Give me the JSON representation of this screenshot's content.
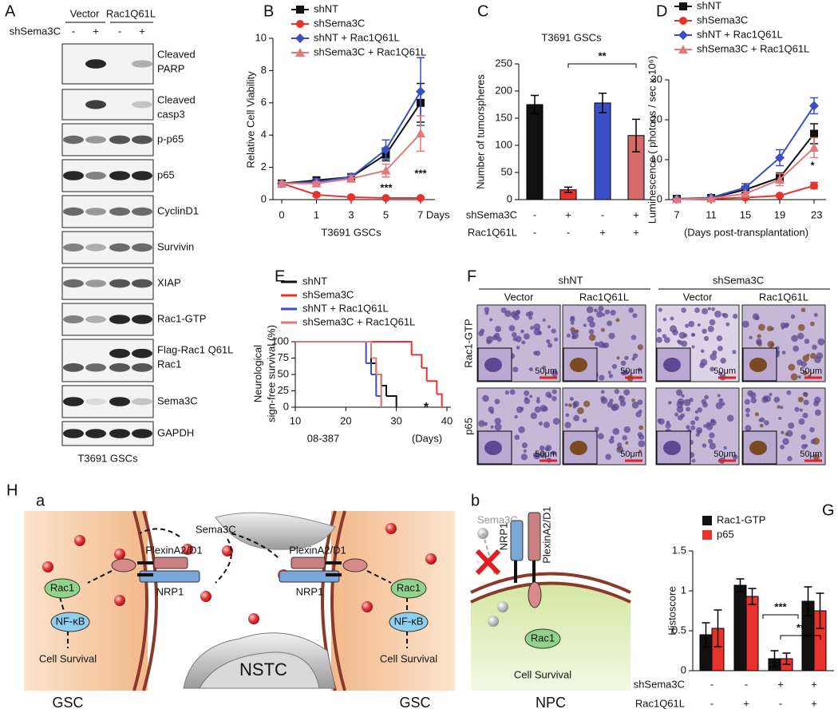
{
  "blot": {
    "panel": "A",
    "groups": [
      "Vector",
      "Rac1Q61L"
    ],
    "row_label": "shSema3C",
    "lanes": [
      "-",
      "+",
      "-",
      "+"
    ],
    "bands": [
      [
        "Cleaved",
        "PARP"
      ],
      [
        "Cleaved",
        "casp3"
      ],
      [
        "p-p65"
      ],
      [
        "p65"
      ],
      [
        "CyclinD1"
      ],
      [
        "Survivin"
      ],
      [
        "XIAP"
      ],
      [
        "Rac1-GTP"
      ],
      [
        "Flag-Rac1 Q61L",
        "Rac1"
      ],
      [
        "Sema3C"
      ],
      [
        "GAPDH"
      ]
    ],
    "caption": "T3691 GSCs"
  },
  "histology": {
    "panel": "F",
    "groups": [
      "shNT",
      "shSema3C"
    ],
    "columns": [
      "Vector",
      "Rac1Q61L",
      "Vector",
      "Rac1Q61L"
    ],
    "rows": [
      "Rac1-GTP",
      "p65"
    ],
    "scale": "50μm"
  },
  "diagram": {
    "panel": "H",
    "a": {
      "label": "a",
      "ligand": "Sema3C",
      "center": "NSTC",
      "left": {
        "receptor": "PlexinA2/D1",
        "coreceptor": "NRP1",
        "effector": "Rac1",
        "factor": "NF-κB",
        "outcome": "Cell Survival",
        "cell": "GSC"
      },
      "right": {
        "receptor": "PlexinA2/D1",
        "coreceptor": "NRP1",
        "effector": "Rac1",
        "factor": "NF-κB",
        "outcome": "Cell Survival",
        "cell": "GSC"
      }
    },
    "b": {
      "label": "b",
      "ligand": "Sema3C",
      "coreceptor": "NRP1",
      "receptor": "PlexinA2/D1",
      "effector": "Rac1",
      "outcome": "Cell Survival",
      "cell": "NPC"
    }
  },
  "chart_data": [
    {
      "type": "line",
      "panel": "B",
      "ylabel": "Relative Cell Viability",
      "xlabel": "T3691 GSCs",
      "categories": [
        "0",
        "1",
        "3",
        "5",
        "7 Days"
      ],
      "ylim": [
        0,
        10
      ],
      "yticks": [
        0,
        2,
        4,
        6,
        8,
        10
      ],
      "series": [
        {
          "name": "shNT",
          "color": "#111111",
          "marker": "square",
          "values": [
            1,
            1.2,
            1.4,
            2.8,
            6.0
          ],
          "errors": [
            0.1,
            0.2,
            0.2,
            0.4,
            1.2
          ]
        },
        {
          "name": "shSema3C",
          "color": "#e8322b",
          "marker": "circle",
          "values": [
            1,
            0.3,
            0.15,
            0.1,
            0.1
          ],
          "errors": [
            0.1,
            0.1,
            0.05,
            0.05,
            0.05
          ]
        },
        {
          "name": "shNT + Rac1Q61L",
          "color": "#3a4fc6",
          "marker": "diamond",
          "values": [
            1,
            1.1,
            1.4,
            3.1,
            6.7
          ],
          "errors": [
            0.1,
            0.2,
            0.2,
            0.6,
            2.1
          ]
        },
        {
          "name": "shSema3C + Rac1Q61L",
          "color": "#e07a7a",
          "marker": "triangle",
          "values": [
            1,
            1.0,
            1.3,
            1.8,
            4.1
          ],
          "errors": [
            0.1,
            0.1,
            0.2,
            0.4,
            1.1
          ]
        }
      ],
      "annotations": [
        "***",
        "***"
      ]
    },
    {
      "type": "bar",
      "panel": "C",
      "title": "T3691 GSCs",
      "ylabel": "Number of tumorspheres",
      "conditions": [
        {
          "name": "shSema3C",
          "values": [
            "-",
            "+",
            "-",
            "+"
          ]
        },
        {
          "name": "Rac1Q61L",
          "values": [
            "-",
            "-",
            "+",
            "+"
          ]
        }
      ],
      "values": [
        175,
        18,
        178,
        118
      ],
      "errors": [
        17,
        5,
        18,
        30
      ],
      "colors": [
        "#111111",
        "#e8322b",
        "#3a4fc6",
        "#d46a6a"
      ],
      "ylim": [
        0,
        250
      ],
      "yticks": [
        0,
        50,
        100,
        150,
        200,
        250
      ],
      "annotations": [
        "**"
      ]
    },
    {
      "type": "line",
      "panel": "D",
      "ylabel": "Luminescence ( photons / sec x 10⁶)",
      "xlabel": "(Days post-transplantation)",
      "categories": [
        "7",
        "11",
        "15",
        "19",
        "23"
      ],
      "ylim": [
        0,
        30
      ],
      "yticks": [
        0,
        10,
        20,
        30
      ],
      "series": [
        {
          "name": "shNT",
          "color": "#111111",
          "marker": "square",
          "values": [
            0.2,
            0.4,
            2.5,
            5.5,
            16.5
          ],
          "errors": [
            0.1,
            0.2,
            0.8,
            1.2,
            2.5
          ]
        },
        {
          "name": "shSema3C",
          "color": "#e8322b",
          "marker": "circle",
          "values": [
            0.1,
            0.2,
            0.5,
            1.0,
            3.5
          ],
          "errors": [
            0.1,
            0.1,
            0.2,
            0.3,
            0.8
          ]
        },
        {
          "name": "shNT + Rac1Q61L",
          "color": "#3a4fc6",
          "marker": "diamond",
          "values": [
            0.2,
            0.5,
            3.0,
            10.5,
            23.5
          ],
          "errors": [
            0.1,
            0.2,
            1.0,
            2.0,
            2.0
          ]
        },
        {
          "name": "shSema3C + Rac1Q61L",
          "color": "#e07a7a",
          "marker": "triangle",
          "values": [
            0.1,
            0.3,
            1.5,
            5.0,
            13.0
          ],
          "errors": [
            0.1,
            0.1,
            0.5,
            1.5,
            2.5
          ]
        }
      ],
      "annotations": [
        "*"
      ]
    },
    {
      "type": "survival",
      "panel": "E",
      "ylabel": [
        "Neurological",
        "sign-free survival (%)"
      ],
      "xlabel": "08-387",
      "x_unit": "(Days)",
      "xlim": [
        10,
        40
      ],
      "xticks": [
        10,
        20,
        30,
        40
      ],
      "ylim": [
        0,
        100
      ],
      "yticks": [
        0,
        25,
        50,
        75,
        100
      ],
      "series": [
        {
          "name": "shNT",
          "color": "#111111",
          "x": [
            10,
            25,
            26,
            27,
            28,
            30
          ],
          "values": [
            100,
            67,
            50,
            33,
            17,
            0
          ]
        },
        {
          "name": "shSema3C",
          "color": "#e8322b",
          "x": [
            10,
            33,
            35,
            36,
            38,
            39
          ],
          "values": [
            100,
            80,
            60,
            40,
            20,
            0
          ]
        },
        {
          "name": "shNT + Rac1Q61L",
          "color": "#3a4fc6",
          "x": [
            10,
            24,
            25,
            26,
            27
          ],
          "values": [
            100,
            67,
            50,
            17,
            0
          ]
        },
        {
          "name": "shSema3C + Rac1Q61L",
          "color": "#e07a7a",
          "x": [
            10,
            25,
            26,
            27
          ],
          "values": [
            100,
            75,
            50,
            0
          ]
        }
      ],
      "annotations": [
        "*"
      ]
    },
    {
      "type": "grouped-bar",
      "panel": "G",
      "ylabel": "Histoscore",
      "conditions": [
        {
          "name": "shSema3C",
          "values": [
            "-",
            "-",
            "+",
            "+"
          ]
        },
        {
          "name": "Rac1Q61L",
          "values": [
            "-",
            "+",
            "-",
            "+"
          ]
        }
      ],
      "ylim": [
        0,
        1.5
      ],
      "yticks": [
        0,
        0.5,
        1,
        1.5
      ],
      "series": [
        {
          "name": "Rac1-GTP",
          "color": "#111111",
          "values": [
            0.45,
            1.07,
            0.15,
            0.87
          ],
          "errors": [
            0.15,
            0.08,
            0.1,
            0.18
          ]
        },
        {
          "name": "p65",
          "color": "#e8322b",
          "values": [
            0.53,
            0.93,
            0.15,
            0.75
          ],
          "errors": [
            0.23,
            0.1,
            0.07,
            0.22
          ]
        }
      ],
      "annotations": [
        "***",
        "**"
      ]
    }
  ]
}
